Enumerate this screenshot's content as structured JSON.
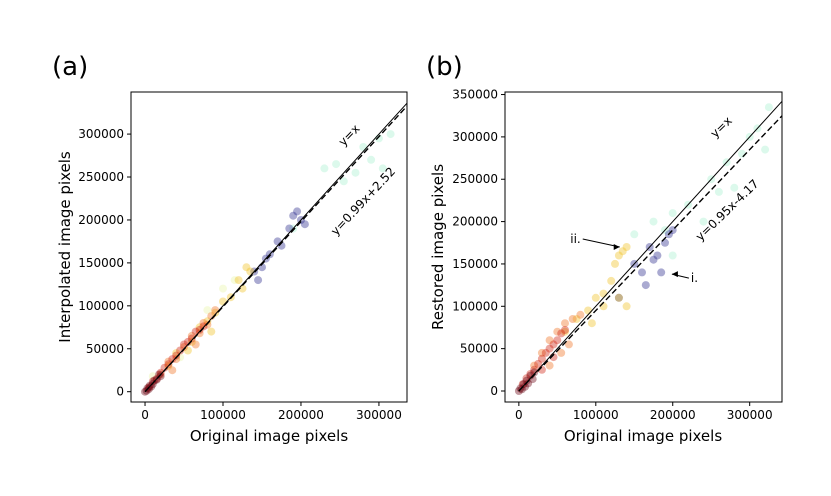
{
  "chart_data": [
    {
      "type": "scatter",
      "panel_label": "(a)",
      "xlabel": "Original image pixels",
      "ylabel": "Interpolated image pixels",
      "xlim": [
        -18000,
        336000
      ],
      "ylim": [
        -12000,
        349000
      ],
      "xticks": [
        0,
        100000,
        200000,
        300000
      ],
      "yticks": [
        0,
        50000,
        100000,
        150000,
        200000,
        250000,
        300000
      ],
      "grid": false,
      "point_alpha": 0.4,
      "series": [
        {
          "color": "#e8f5a8",
          "points": [
            [
              10000,
              18000
            ],
            [
              45000,
              40000
            ],
            [
              80000,
              95000
            ],
            [
              100000,
              120000
            ],
            [
              115000,
              130000
            ]
          ]
        },
        {
          "color": "#a8f0d0",
          "points": [
            [
              190000,
              190000
            ],
            [
              230000,
              260000
            ],
            [
              245000,
              265000
            ],
            [
              255000,
              245000
            ],
            [
              270000,
              255000
            ],
            [
              280000,
              285000
            ],
            [
              290000,
              270000
            ],
            [
              300000,
              295000
            ],
            [
              305000,
              260000
            ],
            [
              315000,
              300000
            ]
          ]
        },
        {
          "color": "#2a2a8c",
          "points": [
            [
              140000,
              140000
            ],
            [
              150000,
              145000
            ],
            [
              160000,
              160000
            ],
            [
              170000,
              175000
            ],
            [
              175000,
              170000
            ],
            [
              185000,
              190000
            ],
            [
              190000,
              205000
            ],
            [
              195000,
              210000
            ],
            [
              200000,
              200000
            ],
            [
              205000,
              195000
            ],
            [
              145000,
              130000
            ],
            [
              155000,
              155000
            ]
          ]
        },
        {
          "color": "#f0c020",
          "points": [
            [
              30000,
              30000
            ],
            [
              40000,
              45000
            ],
            [
              60000,
              58000
            ],
            [
              70000,
              75000
            ],
            [
              80000,
              82000
            ],
            [
              90000,
              92000
            ],
            [
              100000,
              105000
            ],
            [
              110000,
              110000
            ],
            [
              120000,
              130000
            ],
            [
              125000,
              120000
            ],
            [
              130000,
              145000
            ],
            [
              135000,
              140000
            ],
            [
              55000,
              48000
            ],
            [
              85000,
              70000
            ]
          ]
        },
        {
          "color": "#f07020",
          "points": [
            [
              20000,
              20000
            ],
            [
              30000,
              35000
            ],
            [
              40000,
              38000
            ],
            [
              50000,
              52000
            ],
            [
              60000,
              65000
            ],
            [
              70000,
              68000
            ],
            [
              75000,
              80000
            ],
            [
              80000,
              78000
            ],
            [
              85000,
              88000
            ],
            [
              90000,
              95000
            ],
            [
              35000,
              25000
            ],
            [
              65000,
              55000
            ]
          ]
        },
        {
          "color": "#d02010",
          "points": [
            [
              5000,
              5000
            ],
            [
              10000,
              12000
            ],
            [
              15000,
              15000
            ],
            [
              20000,
              22000
            ],
            [
              25000,
              28000
            ],
            [
              30000,
              32000
            ],
            [
              35000,
              38000
            ],
            [
              40000,
              42000
            ],
            [
              45000,
              48000
            ],
            [
              50000,
              55000
            ],
            [
              55000,
              58000
            ],
            [
              60000,
              62000
            ],
            [
              65000,
              70000
            ],
            [
              70000,
              72000
            ],
            [
              75000,
              76000
            ]
          ]
        },
        {
          "color": "#6a0010",
          "points": [
            [
              0,
              0
            ],
            [
              2000,
              1000
            ],
            [
              3000,
              4000
            ],
            [
              5000,
              3000
            ],
            [
              6000,
              7000
            ],
            [
              8000,
              6000
            ],
            [
              10000,
              9000
            ],
            [
              12000,
              13000
            ],
            [
              15000,
              14000
            ],
            [
              18000,
              20000
            ],
            [
              20000,
              18000
            ]
          ]
        }
      ],
      "lines": [
        {
          "label": "y=x",
          "slope": 1.0,
          "intercept": 0,
          "dash": false
        },
        {
          "label": "y=0.99x+2.52",
          "slope": 0.99,
          "intercept": 2.52,
          "dash": true
        }
      ]
    },
    {
      "type": "scatter",
      "panel_label": "(b)",
      "xlabel": "Original image pixels",
      "ylabel": "Restored image pixels",
      "xlim": [
        -18000,
        342000
      ],
      "ylim": [
        -13000,
        353000
      ],
      "xticks": [
        0,
        100000,
        200000,
        300000
      ],
      "yticks": [
        0,
        50000,
        100000,
        150000,
        200000,
        250000,
        300000,
        350000
      ],
      "grid": false,
      "point_alpha": 0.4,
      "series": [
        {
          "color": "#a8f0d0",
          "points": [
            [
              150000,
              185000
            ],
            [
              175000,
              200000
            ],
            [
              190000,
              190000
            ],
            [
              200000,
              210000
            ],
            [
              220000,
              220000
            ],
            [
              250000,
              250000
            ],
            [
              260000,
              235000
            ],
            [
              270000,
              270000
            ],
            [
              280000,
              240000
            ],
            [
              290000,
              280000
            ],
            [
              300000,
              300000
            ],
            [
              310000,
              310000
            ],
            [
              320000,
              285000
            ],
            [
              325000,
              335000
            ],
            [
              200000,
              160000
            ],
            [
              240000,
              200000
            ]
          ]
        },
        {
          "color": "#2a2a8c",
          "points": [
            [
              130000,
              110000
            ],
            [
              150000,
              150000
            ],
            [
              160000,
              140000
            ],
            [
              170000,
              170000
            ],
            [
              175000,
              155000
            ],
            [
              180000,
              160000
            ],
            [
              185000,
              140000
            ],
            [
              190000,
              175000
            ],
            [
              195000,
              185000
            ],
            [
              200000,
              190000
            ],
            [
              165000,
              125000
            ]
          ]
        },
        {
          "color": "#f0c020",
          "points": [
            [
              60000,
              70000
            ],
            [
              75000,
              85000
            ],
            [
              90000,
              95000
            ],
            [
              100000,
              110000
            ],
            [
              110000,
              115000
            ],
            [
              120000,
              130000
            ],
            [
              130000,
              160000
            ],
            [
              135000,
              165000
            ],
            [
              140000,
              170000
            ],
            [
              125000,
              150000
            ],
            [
              110000,
              100000
            ],
            [
              95000,
              80000
            ],
            [
              140000,
              100000
            ],
            [
              130000,
              110000
            ]
          ]
        },
        {
          "color": "#f07020",
          "points": [
            [
              20000,
              30000
            ],
            [
              30000,
              45000
            ],
            [
              40000,
              60000
            ],
            [
              50000,
              70000
            ],
            [
              60000,
              80000
            ],
            [
              70000,
              85000
            ],
            [
              80000,
              90000
            ],
            [
              40000,
              30000
            ],
            [
              55000,
              45000
            ],
            [
              65000,
              55000
            ]
          ]
        },
        {
          "color": "#d02010",
          "points": [
            [
              5000,
              8000
            ],
            [
              10000,
              15000
            ],
            [
              15000,
              20000
            ],
            [
              20000,
              25000
            ],
            [
              25000,
              32000
            ],
            [
              30000,
              38000
            ],
            [
              35000,
              45000
            ],
            [
              40000,
              50000
            ],
            [
              45000,
              55000
            ],
            [
              50000,
              60000
            ],
            [
              55000,
              68000
            ],
            [
              60000,
              72000
            ],
            [
              30000,
              25000
            ],
            [
              45000,
              40000
            ]
          ]
        },
        {
          "color": "#6a0010",
          "points": [
            [
              0,
              0
            ],
            [
              2000,
              3000
            ],
            [
              4000,
              2000
            ],
            [
              6000,
              8000
            ],
            [
              8000,
              5000
            ],
            [
              10000,
              12000
            ],
            [
              12000,
              9000
            ],
            [
              15000,
              18000
            ],
            [
              18000,
              14000
            ],
            [
              20000,
              22000
            ]
          ]
        }
      ],
      "lines": [
        {
          "label": "y=x",
          "slope": 1.0,
          "intercept": 0,
          "dash": false
        },
        {
          "label": "y=0.95x-4.17",
          "slope": 0.95,
          "intercept": -4.17,
          "dash": true
        }
      ],
      "annotations": [
        {
          "text": "ii.",
          "target": [
            135000,
            170000
          ]
        },
        {
          "text": "i.",
          "target": [
            195000,
            138000
          ]
        }
      ]
    }
  ]
}
